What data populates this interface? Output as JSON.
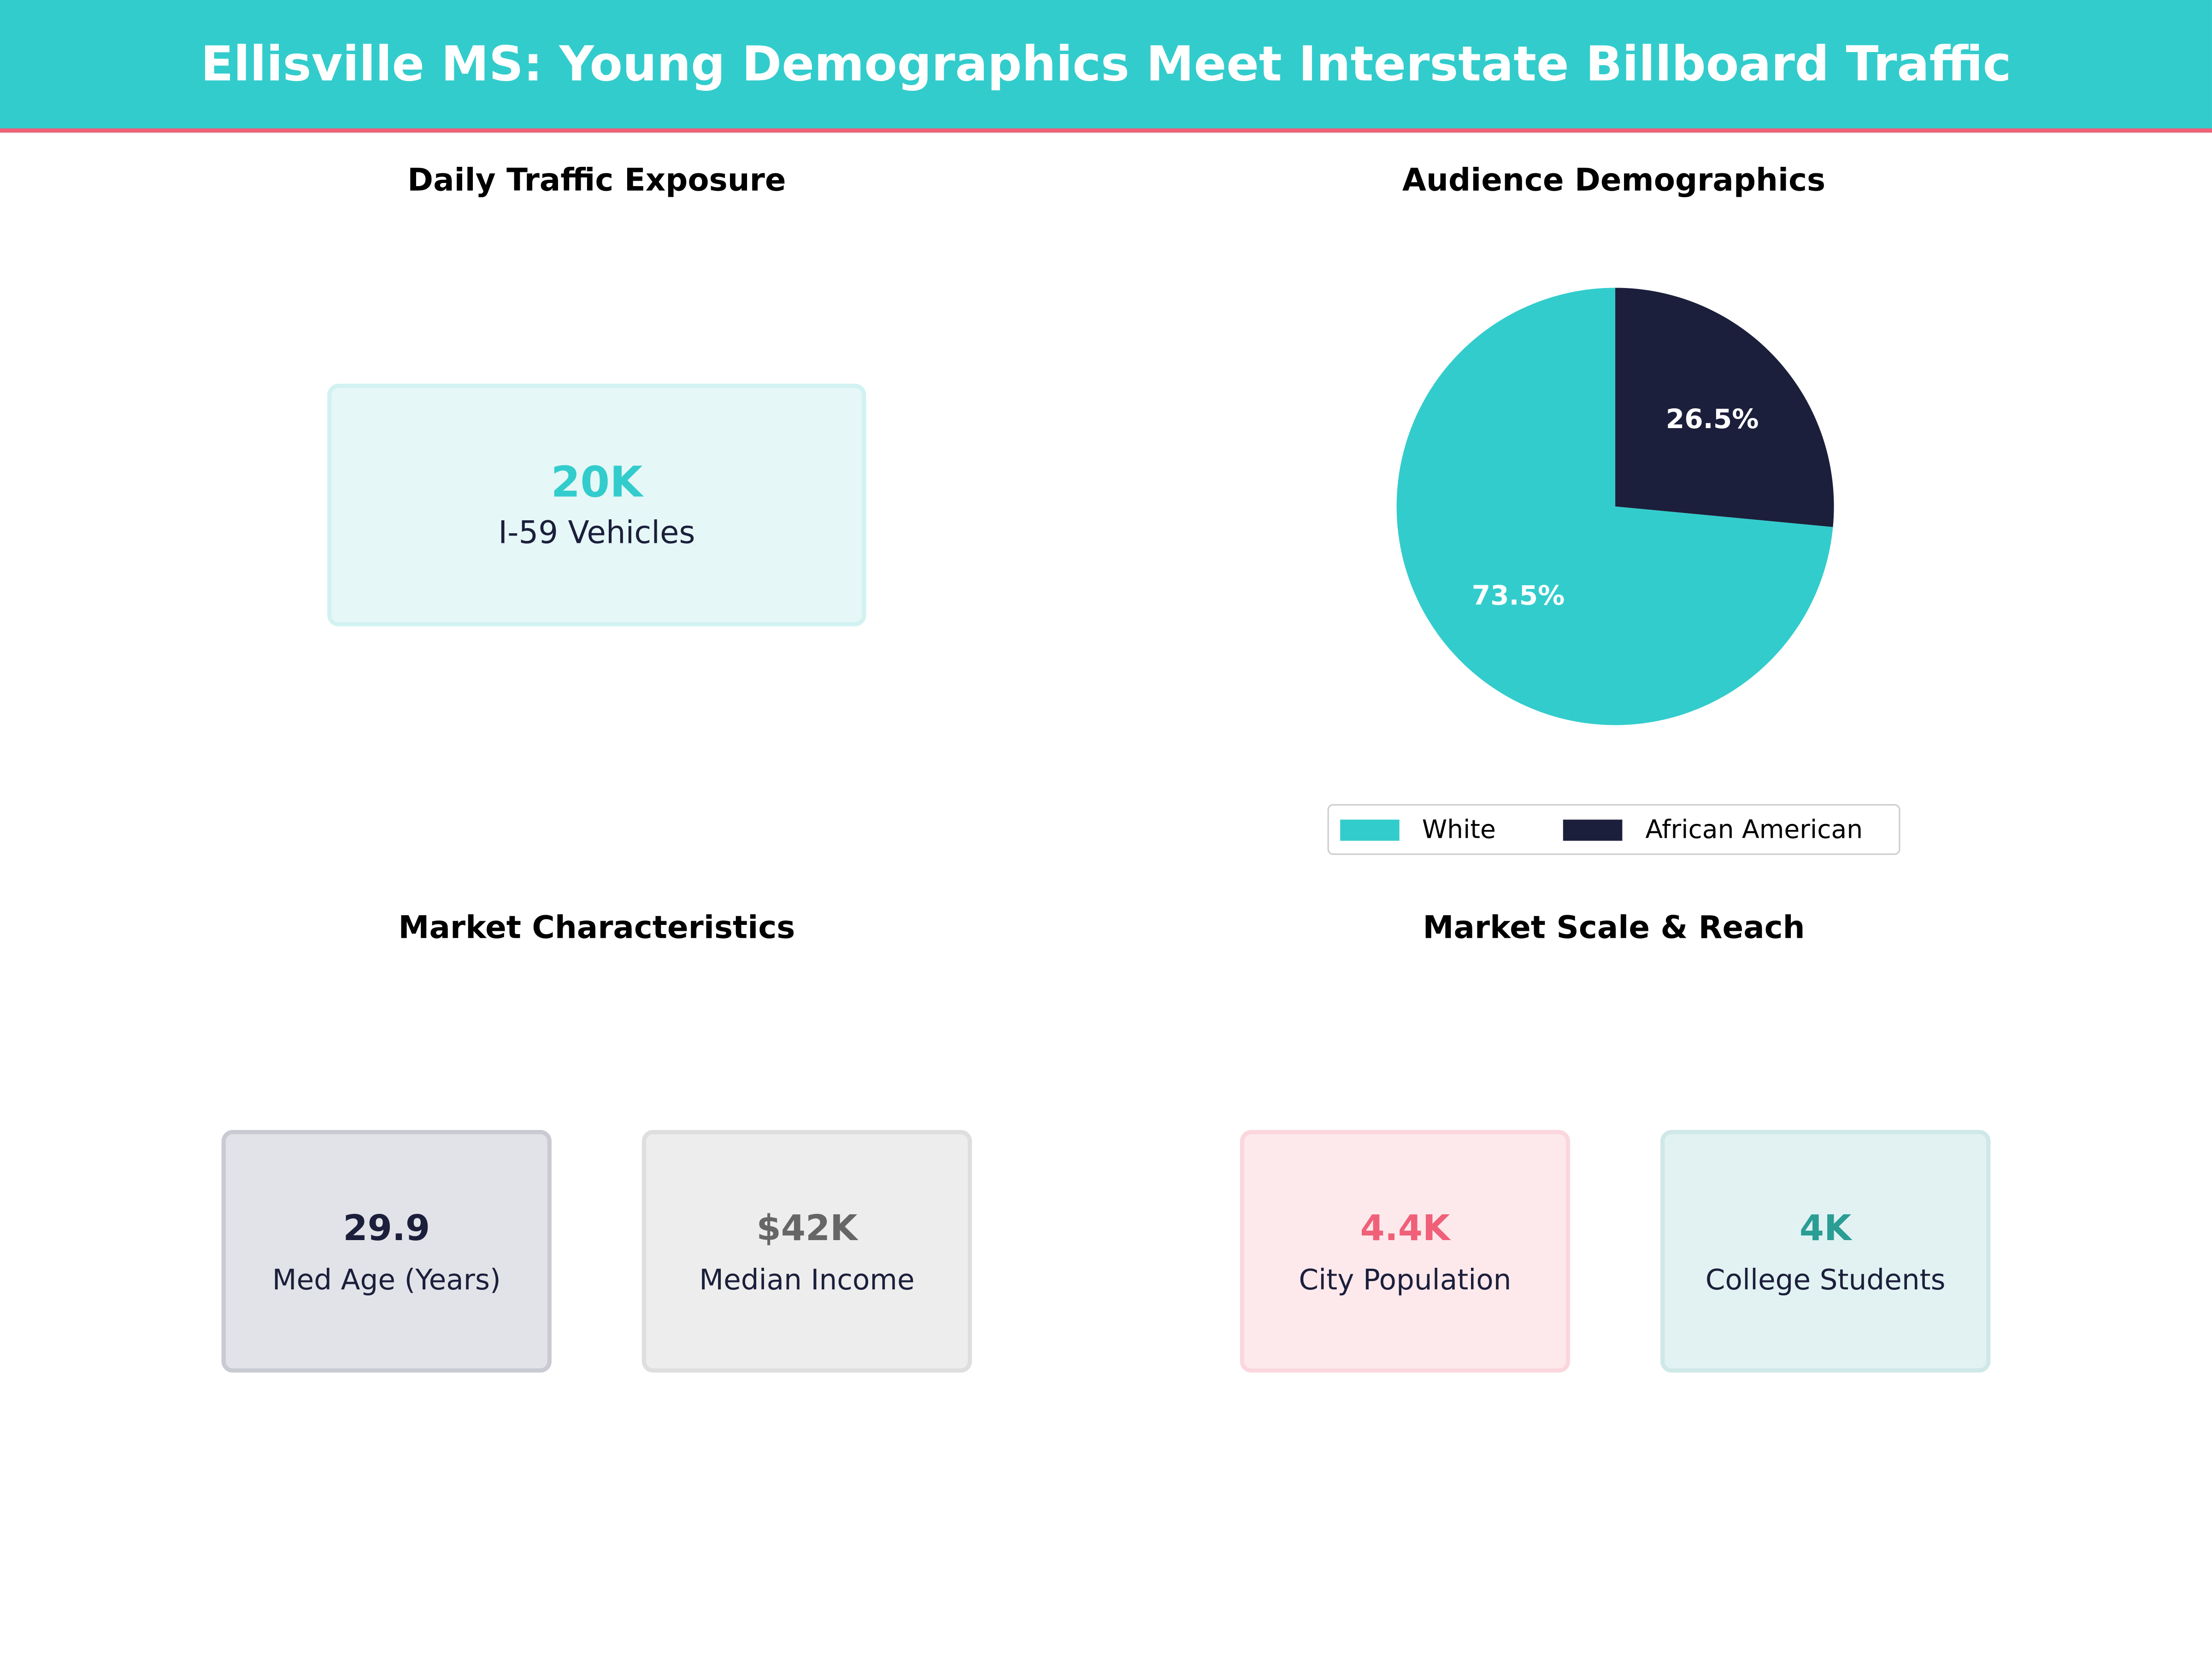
{
  "title": "Ellisville MS: Young Demographics Meet Interstate Billboard Traffic",
  "colors": {
    "teal": "#33cccc",
    "navy": "#1b1f3b",
    "pink": "#f06078",
    "gray": "#666666",
    "darkteal": "#2a9d95"
  },
  "traffic": {
    "title": "Daily Traffic Exposure",
    "value": "20K",
    "label": "I-59 Vehicles"
  },
  "chart_data": {
    "type": "pie",
    "title": "Audience Demographics",
    "categories": [
      "White",
      "African American"
    ],
    "values": [
      73.5,
      26.5
    ],
    "labels": [
      "73.5%",
      "26.5%"
    ],
    "colors": [
      "#33cccc",
      "#1b1f3b"
    ],
    "legend": "bottom"
  },
  "market": {
    "title": "Market Characteristics",
    "cards": [
      {
        "value": "29.9",
        "label": "Med Age (Years)"
      },
      {
        "value": "$42K",
        "label": "Median Income"
      }
    ]
  },
  "scale": {
    "title": "Market Scale & Reach",
    "cards": [
      {
        "value": "4.4K",
        "label": "City Population"
      },
      {
        "value": "4K",
        "label": "College Students"
      }
    ]
  }
}
